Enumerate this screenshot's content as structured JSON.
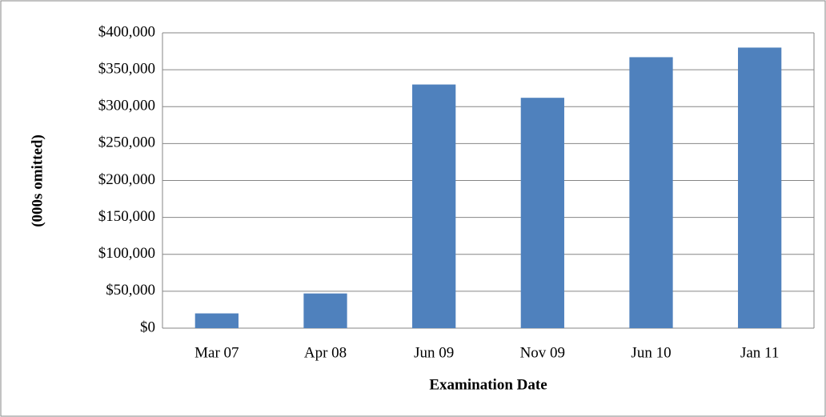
{
  "chart_data": {
    "type": "bar",
    "x_label": "Examination Date",
    "y_label": "(000s omitted)",
    "categories": [
      "Mar 07",
      "Apr 08",
      "Jun 09",
      "Nov 09",
      "Jun 10",
      "Jan 11"
    ],
    "values": [
      20000,
      47000,
      330000,
      312000,
      367000,
      380000
    ],
    "color": "#4f81bd",
    "ylim": [
      0,
      400000
    ],
    "yticks": [
      {
        "value": 0,
        "label": "$0"
      },
      {
        "value": 50000,
        "label": "$50,000"
      },
      {
        "value": 100000,
        "label": "$100,000"
      },
      {
        "value": 150000,
        "label": "$150,000"
      },
      {
        "value": 200000,
        "label": "$200,000"
      },
      {
        "value": 250000,
        "label": "$250,000"
      },
      {
        "value": 300000,
        "label": "$300,000"
      },
      {
        "value": 350000,
        "label": "$350,000"
      },
      {
        "value": 400000,
        "label": "$400,000"
      }
    ],
    "grid": true
  }
}
